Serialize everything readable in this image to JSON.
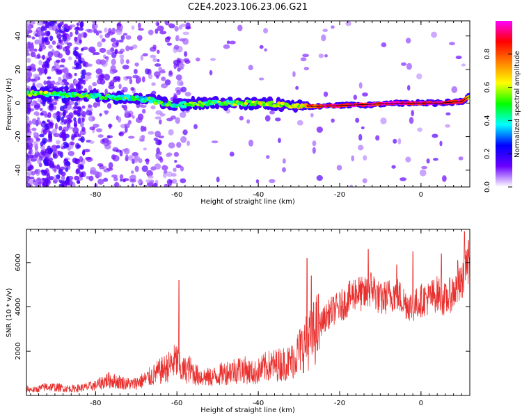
{
  "title": "C2E4.2023.106.23.06.G21",
  "chart_data": [
    {
      "type": "heatmap",
      "xlabel": "Height of straight line (km)",
      "ylabel": "Frequency (Hz)",
      "xlim": [
        -97,
        12
      ],
      "ylim": [
        -50,
        49
      ],
      "xticks": [
        -80,
        -60,
        -40,
        -20,
        0
      ],
      "yticks": [
        -40,
        -20,
        0,
        20,
        40
      ],
      "colorbar": {
        "label": "Normalized spectral amplitude",
        "range": [
          0,
          1
        ],
        "ticks": [
          0.0,
          0.2,
          0.4,
          0.6,
          0.8
        ],
        "colormap": [
          "#ffffff",
          "#6a00ff",
          "#0000ff",
          "#00ffff",
          "#00ff00",
          "#ffff00",
          "#ff8000",
          "#ff0000",
          "#ff00ff"
        ]
      },
      "ridge": [
        {
          "x": -97,
          "f": 6,
          "amp": 0.55
        },
        {
          "x": -90,
          "f": 5,
          "amp": 0.5
        },
        {
          "x": -80,
          "f": 4,
          "amp": 0.45
        },
        {
          "x": -70,
          "f": 3,
          "amp": 0.45
        },
        {
          "x": -60,
          "f": -1,
          "amp": 0.45
        },
        {
          "x": -50,
          "f": 0,
          "amp": 0.5
        },
        {
          "x": -40,
          "f": 0,
          "amp": 0.55
        },
        {
          "x": -30,
          "f": -2,
          "amp": 0.6
        },
        {
          "x": -25,
          "f": -2,
          "amp": 0.9
        },
        {
          "x": -15,
          "f": -1,
          "amp": 0.9
        },
        {
          "x": -5,
          "f": 0,
          "amp": 0.95
        },
        {
          "x": 5,
          "f": 0,
          "amp": 0.95
        },
        {
          "x": 10,
          "f": 1,
          "amp": 0.9
        },
        {
          "x": 12,
          "f": 4,
          "amp": 0.6
        }
      ]
    },
    {
      "type": "line",
      "xlabel": "Height of straight line (km)",
      "ylabel": "SNR (10 * v/v)",
      "xlim": [
        -97,
        12
      ],
      "ylim": [
        0,
        7500
      ],
      "xticks": [
        -80,
        -60,
        -40,
        -20,
        0
      ],
      "yticks": [
        2000,
        4000,
        6000
      ],
      "series": [
        {
          "color": "#e8302e",
          "x": [
            -97,
            -95,
            -92,
            -89,
            -86,
            -83,
            -80,
            -77,
            -74,
            -71,
            -68,
            -65,
            -62,
            -60,
            -59,
            -57,
            -55,
            -52,
            -50,
            -47,
            -44,
            -41,
            -38,
            -35,
            -32,
            -30,
            -28,
            -26,
            -24,
            -22,
            -20,
            -18,
            -16,
            -14,
            -12,
            -10,
            -8,
            -6,
            -4,
            -2,
            0,
            2,
            4,
            6,
            8,
            10,
            11,
            12
          ],
          "y": [
            300,
            250,
            400,
            350,
            300,
            350,
            450,
            700,
            600,
            500,
            700,
            1000,
            1300,
            1600,
            1100,
            1200,
            900,
            800,
            900,
            1100,
            1200,
            1000,
            1300,
            1400,
            1500,
            2000,
            2400,
            2900,
            3400,
            3800,
            4000,
            4300,
            4700,
            4500,
            4900,
            4300,
            4500,
            4600,
            4200,
            4000,
            4300,
            4400,
            4600,
            4300,
            4700,
            5000,
            6000,
            5200
          ],
          "peaks": [
            {
              "x": -59.5,
              "y": 5200
            },
            {
              "x": -27,
              "y": 5400
            },
            {
              "x": -28,
              "y": 6200
            },
            {
              "x": -13,
              "y": 6600
            },
            {
              "x": -6,
              "y": 5900
            },
            {
              "x": -2,
              "y": 6500
            },
            {
              "x": 5,
              "y": 6400
            },
            {
              "x": 9,
              "y": 6100
            },
            {
              "x": 10.7,
              "y": 7400
            },
            {
              "x": 11.7,
              "y": 7000
            }
          ]
        }
      ]
    }
  ]
}
